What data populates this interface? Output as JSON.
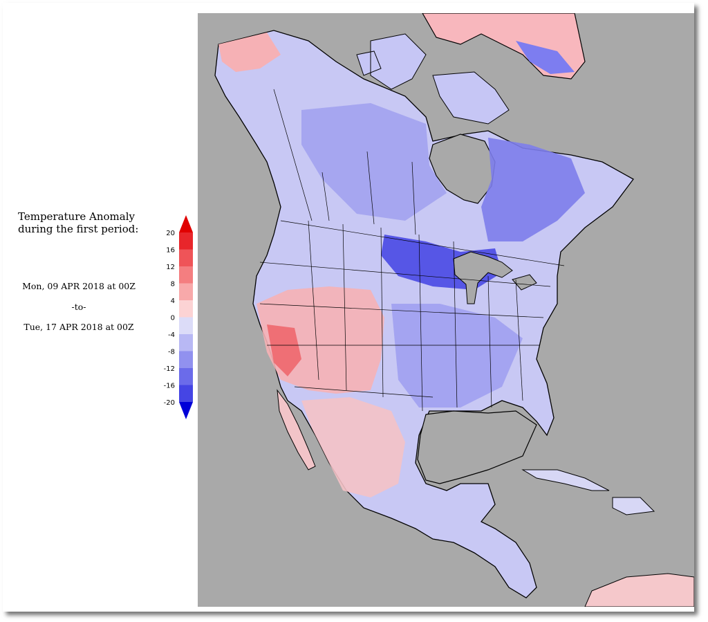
{
  "title": {
    "line1": "Temperature Anomaly",
    "line2": "during the first period:"
  },
  "period": {
    "start": "Mon, 09 APR 2018 at 00Z",
    "separator": "-to-",
    "end": "Tue, 17 APR 2018 at 00Z"
  },
  "legend": {
    "ticks": [
      "20",
      "16",
      "12",
      "8",
      "4",
      "0",
      "-4",
      "-8",
      "-12",
      "-16",
      "-20"
    ],
    "bins": [
      {
        "from": 16,
        "to": 20,
        "color": "#e8262b"
      },
      {
        "from": 12,
        "to": 16,
        "color": "#ef5458"
      },
      {
        "from": 8,
        "to": 12,
        "color": "#f47e80"
      },
      {
        "from": 4,
        "to": 8,
        "color": "#f8a9aa"
      },
      {
        "from": 0,
        "to": 4,
        "color": "#fcd3d4"
      },
      {
        "from": -4,
        "to": 0,
        "color": "#dcdcf8"
      },
      {
        "from": -8,
        "to": -4,
        "color": "#b8b8f4"
      },
      {
        "from": -12,
        "to": -8,
        "color": "#9191ef"
      },
      {
        "from": -16,
        "to": -12,
        "color": "#6b6bea"
      },
      {
        "from": -20,
        "to": -16,
        "color": "#4545e4"
      }
    ],
    "overflow_color": "#e00000",
    "underflow_color": "#0000d8"
  },
  "map": {
    "ocean_color": "#a9a9a9",
    "lake_color": "#a9a9a9"
  }
}
